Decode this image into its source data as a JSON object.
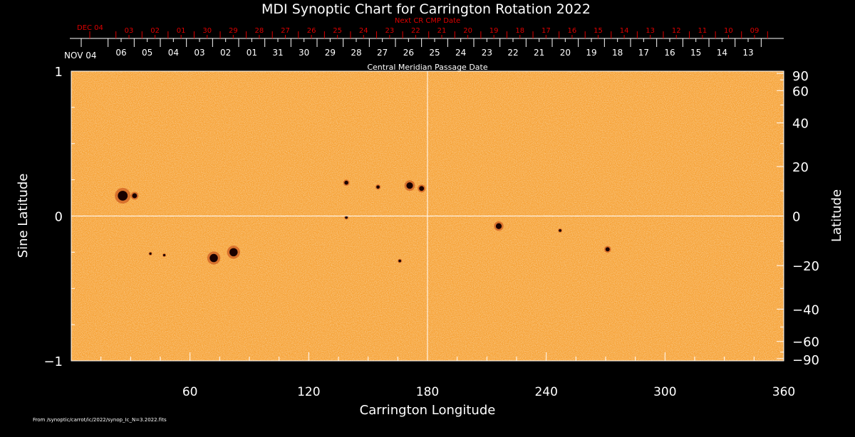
{
  "chart_data": {
    "type": "heatmap",
    "title": "MDI Synoptic Chart for Carrington Rotation 2022",
    "xlabel": "Carrington Longitude",
    "ylabel_left": "Sine Latitude",
    "ylabel_right": "Latitude",
    "xlim": [
      0,
      360
    ],
    "ylim": [
      -1,
      1
    ],
    "x_ticks": [
      "60",
      "120",
      "180",
      "240",
      "300",
      "360"
    ],
    "x_tick_values": [
      60,
      120,
      180,
      240,
      300,
      360
    ],
    "y_left_ticks": [
      "1",
      "0",
      "−1"
    ],
    "y_left_values": [
      1,
      0,
      -1
    ],
    "y_right_ticks": [
      "90",
      "60",
      "40",
      "20",
      "0",
      "−20",
      "−40",
      "−60",
      "−90"
    ],
    "y_right_values": [
      90,
      60,
      40,
      20,
      0,
      -20,
      -40,
      -60,
      -90
    ],
    "cmp_axis": {
      "title": "Central Meridian Passage Date",
      "start_label": "NOV 04",
      "labels": [
        "06",
        "05",
        "04",
        "03",
        "02",
        "01",
        "31",
        "30",
        "29",
        "28",
        "27",
        "26",
        "25",
        "24",
        "23",
        "22",
        "21",
        "20",
        "19",
        "18",
        "17",
        "16",
        "15",
        "14",
        "13"
      ]
    },
    "next_cr_axis": {
      "title": "Next CR CMP Date",
      "start_label": "DEC 04",
      "labels": [
        "03",
        "02",
        "01",
        "30",
        "29",
        "28",
        "27",
        "26",
        "25",
        "24",
        "23",
        "22",
        "21",
        "20",
        "19",
        "18",
        "17",
        "16",
        "15",
        "14",
        "13",
        "12",
        "11",
        "10",
        "09"
      ]
    },
    "features": [
      {
        "lon": 26,
        "sinlat": 0.14,
        "size": 3
      },
      {
        "lon": 32,
        "sinlat": 0.14,
        "size": 1.5
      },
      {
        "lon": 139,
        "sinlat": 0.23,
        "size": 1.2
      },
      {
        "lon": 155,
        "sinlat": 0.2,
        "size": 1
      },
      {
        "lon": 171,
        "sinlat": 0.21,
        "size": 2
      },
      {
        "lon": 177,
        "sinlat": 0.19,
        "size": 1.5
      },
      {
        "lon": 139,
        "sinlat": -0.01,
        "size": 0.8
      },
      {
        "lon": 72,
        "sinlat": -0.29,
        "size": 2.5
      },
      {
        "lon": 82,
        "sinlat": -0.25,
        "size": 2.5
      },
      {
        "lon": 40,
        "sinlat": -0.26,
        "size": 0.7
      },
      {
        "lon": 47,
        "sinlat": -0.27,
        "size": 0.7
      },
      {
        "lon": 166,
        "sinlat": -0.31,
        "size": 0.8
      },
      {
        "lon": 216,
        "sinlat": -0.07,
        "size": 1.8
      },
      {
        "lon": 247,
        "sinlat": -0.1,
        "size": 0.8
      },
      {
        "lon": 271,
        "sinlat": -0.23,
        "size": 1.3
      }
    ],
    "source_note": "From /synoptic/carrot/ic/2022/synop_Ic_N=3.2022.fits"
  },
  "colors": {
    "background": "#000000",
    "field": "#f6a236",
    "axis": "#ffffff",
    "next_cr": "#dd0000",
    "spot": "#1a0000"
  }
}
